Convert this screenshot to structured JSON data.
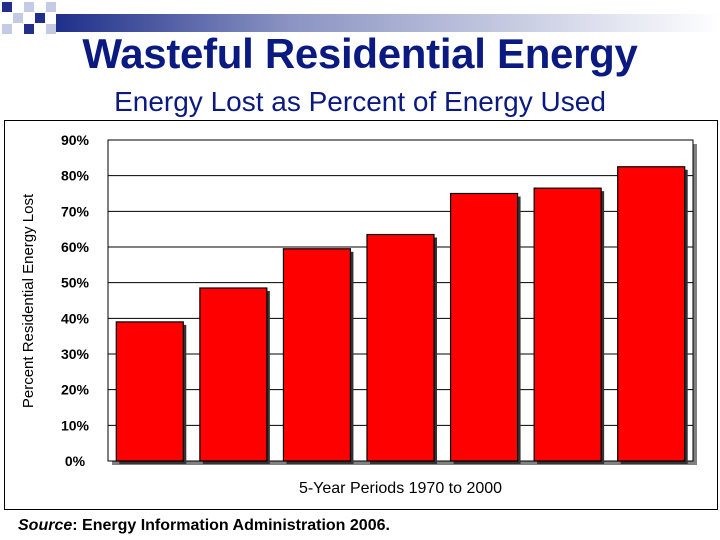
{
  "slide": {
    "title": "Wasteful Residential Energy",
    "subtitle": "Energy Lost as Percent of Energy Used",
    "source_label": "Source",
    "source_text": ": Energy Information Administration 2006."
  },
  "colors": {
    "title": "#0a1a80",
    "bar": "#ff0000",
    "deco_blue": "#1f2f8a"
  },
  "chart_data": {
    "type": "bar",
    "title": "",
    "xlabel": "5-Year Periods 1970 to 2000",
    "ylabel": "Percent Residential Energy Lost",
    "ylim": [
      0,
      90
    ],
    "yticks": [
      "0%",
      "10%",
      "20%",
      "30%",
      "40%",
      "50%",
      "60%",
      "70%",
      "80%",
      "90%"
    ],
    "categories": [
      "",
      "",
      "",
      "",
      "",
      "",
      ""
    ],
    "values": [
      39,
      48.5,
      59.5,
      63.5,
      75,
      76.5,
      82.5
    ]
  }
}
